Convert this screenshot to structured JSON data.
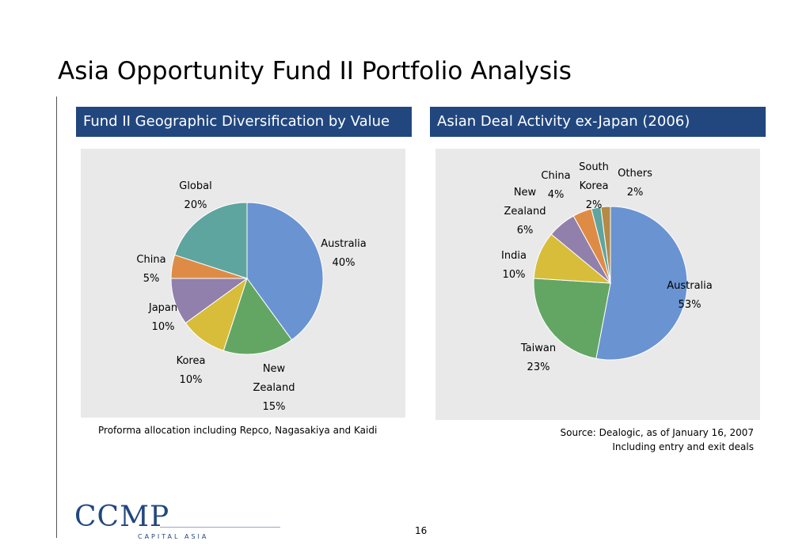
{
  "page": {
    "title": "Asia Opportunity Fund II Portfolio Analysis",
    "page_number": "16"
  },
  "left_panel": {
    "header": "Fund II Geographic Diversification by Value",
    "footnote": "Proforma allocation including Repco, Nagasakiya and Kaidi"
  },
  "right_panel": {
    "header": "Asian Deal Activity ex-Japan (2006)",
    "source_line1": "Source: Dealogic, as of January 16, 2007",
    "source_line2": "Including entry and exit deals"
  },
  "logo": {
    "name": "CCMP",
    "sub": "CAPITAL ASIA"
  },
  "chart_data": [
    {
      "type": "pie",
      "title": "Fund II Geographic Diversification by Value",
      "slices": [
        {
          "label": [
            "Australia"
          ],
          "value": 40,
          "pct": "40%",
          "color": "#6a93d1"
        },
        {
          "label": [
            "New",
            "Zealand"
          ],
          "value": 15,
          "pct": "15%",
          "color": "#63a664"
        },
        {
          "label": [
            "Korea"
          ],
          "value": 10,
          "pct": "10%",
          "color": "#d7bd3a"
        },
        {
          "label": [
            "Japan"
          ],
          "value": 10,
          "pct": "10%",
          "color": "#9080ab"
        },
        {
          "label": [
            "China"
          ],
          "value": 5,
          "pct": "5%",
          "color": "#de8c45"
        },
        {
          "label": [
            "Global"
          ],
          "value": 20,
          "pct": "20%",
          "color": "#5ea59f"
        }
      ]
    },
    {
      "type": "pie",
      "title": "Asian Deal Activity ex-Japan (2006)",
      "slices": [
        {
          "label": [
            "Australia"
          ],
          "value": 53,
          "pct": "53%",
          "color": "#6a93d1"
        },
        {
          "label": [
            "Taiwan"
          ],
          "value": 23,
          "pct": "23%",
          "color": "#63a664"
        },
        {
          "label": [
            "India"
          ],
          "value": 10,
          "pct": "10%",
          "color": "#d7bd3a"
        },
        {
          "label": [
            "New",
            "Zealand"
          ],
          "value": 6,
          "pct": "6%",
          "color": "#9080ab"
        },
        {
          "label": [
            "China"
          ],
          "value": 4,
          "pct": "4%",
          "color": "#de8c45"
        },
        {
          "label": [
            "South",
            "Korea"
          ],
          "value": 2,
          "pct": "2%",
          "color": "#5ea59f"
        },
        {
          "label": [
            "Others"
          ],
          "value": 2,
          "pct": "2%",
          "color": "#b58a45"
        }
      ]
    }
  ]
}
